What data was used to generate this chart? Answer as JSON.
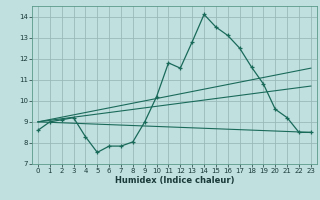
{
  "bg_color": "#c0e0e0",
  "grid_color": "#9ababa",
  "line_color": "#1a6a5a",
  "xlabel": "Humidex (Indice chaleur)",
  "xlim": [
    -0.5,
    23.5
  ],
  "ylim": [
    7,
    14.5
  ],
  "yticks": [
    7,
    8,
    9,
    10,
    11,
    12,
    13,
    14
  ],
  "xticks": [
    0,
    1,
    2,
    3,
    4,
    5,
    6,
    7,
    8,
    9,
    10,
    11,
    12,
    13,
    14,
    15,
    16,
    17,
    18,
    19,
    20,
    21,
    22,
    23
  ],
  "series1_x": [
    0,
    1,
    2,
    3,
    4,
    5,
    6,
    7,
    8,
    9,
    10,
    11,
    12,
    13,
    14,
    15,
    16,
    17,
    18,
    19,
    20,
    21,
    22,
    23
  ],
  "series1_y": [
    8.6,
    9.0,
    9.1,
    9.2,
    8.3,
    7.55,
    7.85,
    7.85,
    8.05,
    9.0,
    10.2,
    11.8,
    11.55,
    12.8,
    14.1,
    13.5,
    13.1,
    12.5,
    11.6,
    10.8,
    9.6,
    9.2,
    8.5,
    8.5
  ],
  "series2_x": [
    0,
    23
  ],
  "series2_y": [
    9.0,
    11.55
  ],
  "series3_x": [
    0,
    23
  ],
  "series3_y": [
    9.0,
    10.7
  ],
  "series4_x": [
    0,
    23
  ],
  "series4_y": [
    9.0,
    8.5
  ]
}
